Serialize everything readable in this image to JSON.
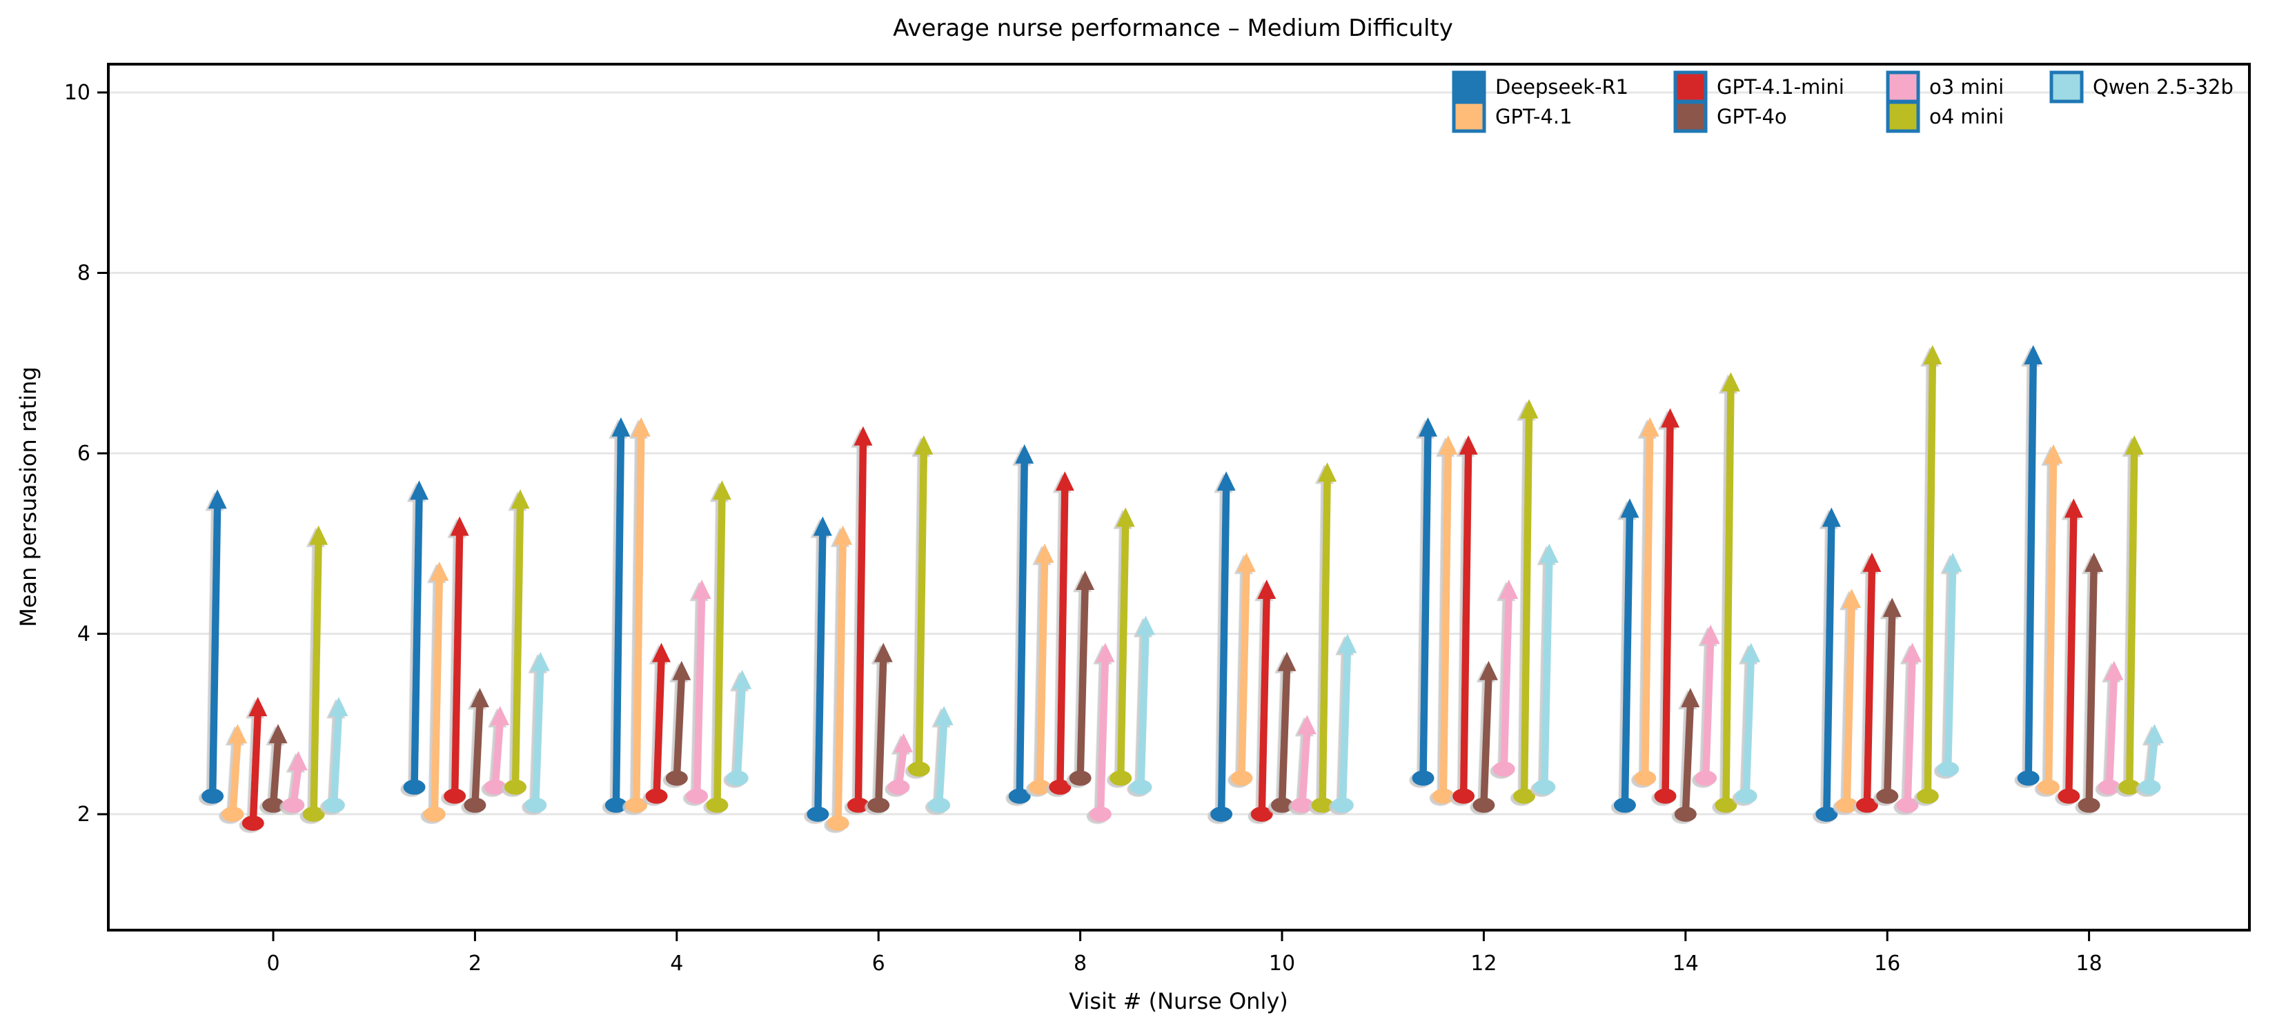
{
  "title": "Average nurse performance – Medium Difficulty",
  "colors": {
    "spine": "#000000",
    "grid": "#e6e6e6",
    "background": "#ffffff",
    "legend_edge": "#1f77b4",
    "shadow": "#c9c9c9"
  },
  "chart_data": {
    "type": "arrow",
    "description": "Per-visit upward arrows from start rating (dot) to end rating (arrowhead tip) for each model",
    "title": "Average nurse performance – Medium Difficulty",
    "xlabel": "Visit # (Nurse Only)",
    "ylabel": "Mean persuasion rating",
    "x_ticks": [
      0,
      2,
      4,
      6,
      8,
      10,
      12,
      14,
      16,
      18
    ],
    "y_ticks": [
      2,
      4,
      6,
      8,
      10
    ],
    "ylim": [
      0.7,
      10.3
    ],
    "grid": "horizontal",
    "legend_position": "upper right, 4 columns, no frame",
    "x": [
      0,
      2,
      4,
      6,
      8,
      10,
      12,
      14,
      16,
      18
    ],
    "series": [
      {
        "name": "Deepseek-R1",
        "color": "#1f77b4",
        "arrows": [
          [
            2.2,
            5.6
          ],
          [
            2.3,
            5.7
          ],
          [
            2.1,
            6.4
          ],
          [
            2.0,
            5.3
          ],
          [
            2.2,
            6.1
          ],
          [
            2.0,
            5.8
          ],
          [
            2.4,
            6.4
          ],
          [
            2.1,
            5.5
          ],
          [
            2.0,
            5.4
          ],
          [
            2.4,
            7.2
          ]
        ]
      },
      {
        "name": "GPT-4.1",
        "color": "#ffbb78",
        "arrows": [
          [
            2.0,
            3.0
          ],
          [
            2.0,
            4.8
          ],
          [
            2.1,
            6.4
          ],
          [
            1.9,
            5.2
          ],
          [
            2.3,
            5.0
          ],
          [
            2.4,
            4.9
          ],
          [
            2.2,
            6.2
          ],
          [
            2.4,
            6.4
          ],
          [
            2.1,
            4.5
          ],
          [
            2.3,
            6.1
          ]
        ]
      },
      {
        "name": "GPT-4.1-mini",
        "color": "#d62728",
        "arrows": [
          [
            1.9,
            3.3
          ],
          [
            2.2,
            5.3
          ],
          [
            2.2,
            3.9
          ],
          [
            2.1,
            6.3
          ],
          [
            2.3,
            5.8
          ],
          [
            2.0,
            4.6
          ],
          [
            2.2,
            6.2
          ],
          [
            2.2,
            6.5
          ],
          [
            2.1,
            4.9
          ],
          [
            2.2,
            5.5
          ]
        ]
      },
      {
        "name": "GPT-4o",
        "color": "#8c564b",
        "arrows": [
          [
            2.1,
            3.0
          ],
          [
            2.1,
            3.4
          ],
          [
            2.4,
            3.7
          ],
          [
            2.1,
            3.9
          ],
          [
            2.4,
            4.7
          ],
          [
            2.1,
            3.8
          ],
          [
            2.1,
            3.7
          ],
          [
            2.0,
            3.4
          ],
          [
            2.2,
            4.4
          ],
          [
            2.1,
            4.9
          ]
        ]
      },
      {
        "name": "o3 mini",
        "color": "#f6a8c8",
        "arrows": [
          [
            2.1,
            2.7
          ],
          [
            2.3,
            3.2
          ],
          [
            2.2,
            4.6
          ],
          [
            2.3,
            2.9
          ],
          [
            2.0,
            3.9
          ],
          [
            2.1,
            3.1
          ],
          [
            2.5,
            4.6
          ],
          [
            2.4,
            4.1
          ],
          [
            2.1,
            3.9
          ],
          [
            2.3,
            3.7
          ]
        ]
      },
      {
        "name": "o4 mini",
        "color": "#bcbd22",
        "arrows": [
          [
            2.0,
            5.2
          ],
          [
            2.3,
            5.6
          ],
          [
            2.1,
            5.7
          ],
          [
            2.5,
            6.2
          ],
          [
            2.4,
            5.4
          ],
          [
            2.1,
            5.9
          ],
          [
            2.2,
            6.6
          ],
          [
            2.1,
            6.9
          ],
          [
            2.2,
            7.2
          ],
          [
            2.3,
            6.2
          ]
        ]
      },
      {
        "name": "Qwen 2.5-32b",
        "color": "#9edae5",
        "arrows": [
          [
            2.1,
            3.3
          ],
          [
            2.1,
            3.8
          ],
          [
            2.4,
            3.6
          ],
          [
            2.1,
            3.2
          ],
          [
            2.3,
            4.2
          ],
          [
            2.1,
            4.0
          ],
          [
            2.3,
            5.0
          ],
          [
            2.2,
            3.9
          ],
          [
            2.5,
            4.9
          ],
          [
            2.3,
            3.0
          ]
        ]
      }
    ]
  }
}
